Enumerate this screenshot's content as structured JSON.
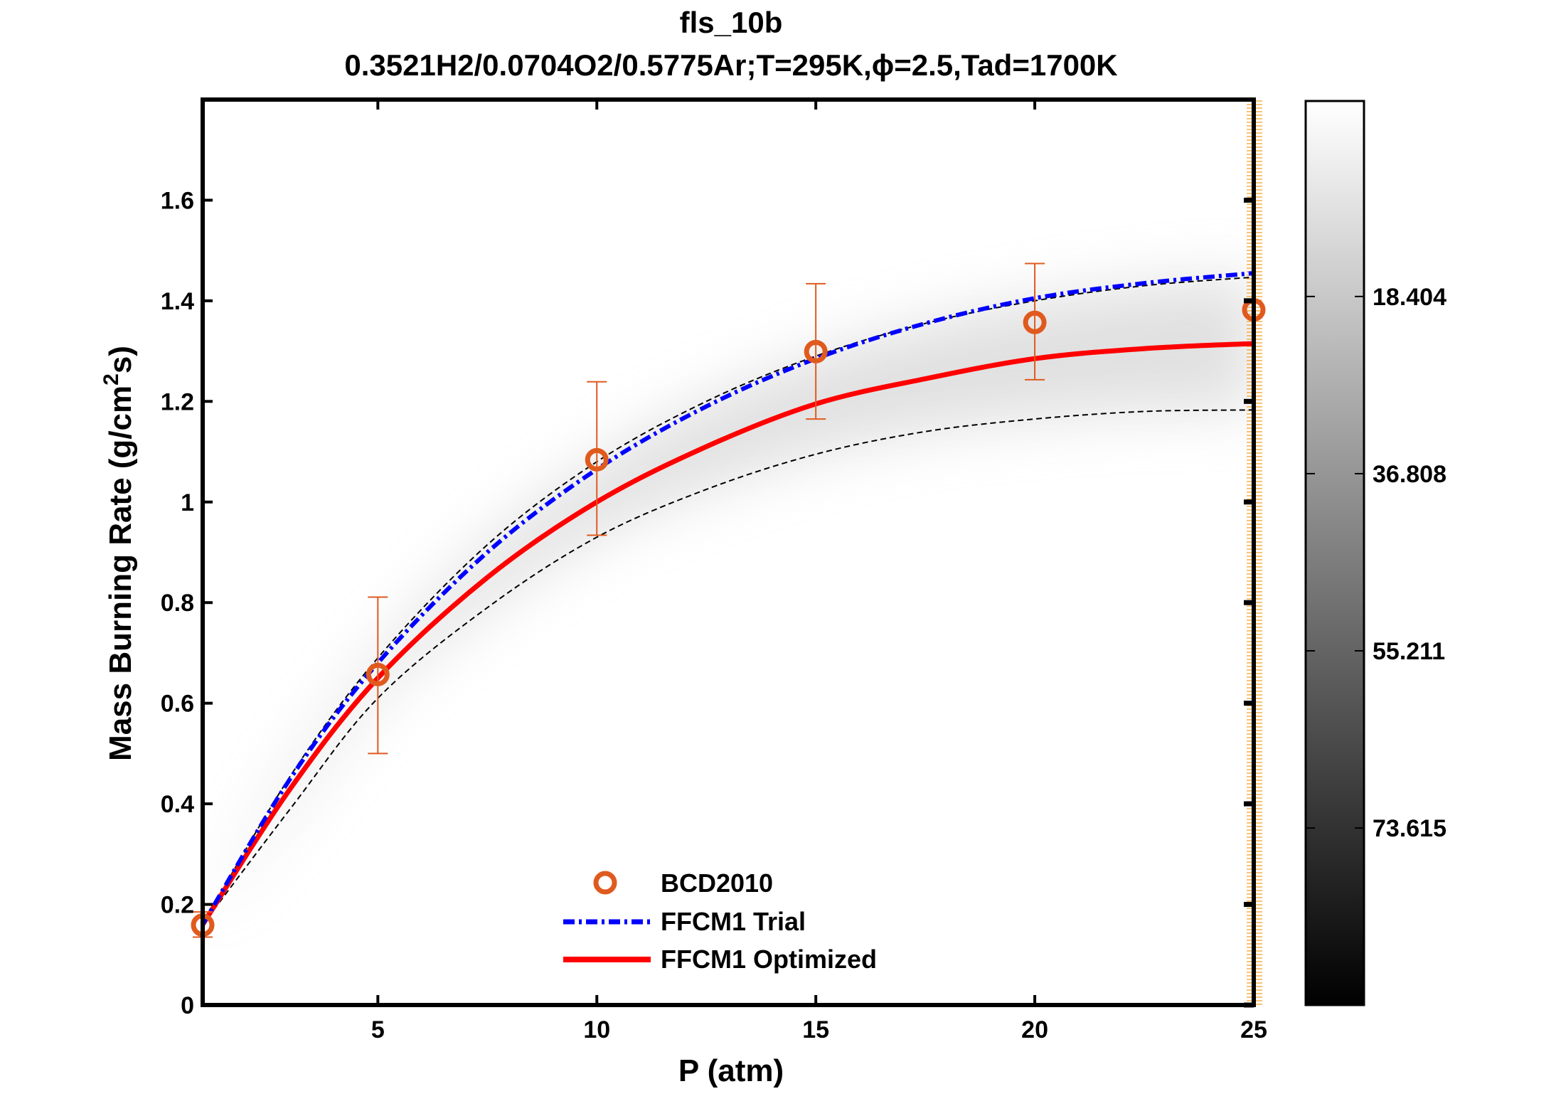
{
  "chart_data": {
    "type": "line",
    "title": "fls_10b",
    "subtitle": "0.3521H2/0.0704O2/0.5775Ar;T=295K,ϕ=2.5,Tad=1700K",
    "xlabel": "P (atm)",
    "ylabel_main": "Mass Burning Rate (g/cm",
    "ylabel_sup": "2",
    "ylabel_end": "s)",
    "xlim": [
      1,
      25
    ],
    "ylim": [
      0,
      1.8
    ],
    "xticks": [
      5,
      10,
      15,
      20,
      25
    ],
    "xtick_labels": [
      "5",
      "10",
      "15",
      "20",
      "25"
    ],
    "yticks": [
      0,
      0.2,
      0.4,
      0.6,
      0.8,
      1,
      1.2,
      1.4,
      1.6
    ],
    "ytick_labels": [
      "0",
      "0.2",
      "0.4",
      "0.6",
      "0.8",
      "1",
      "1.2",
      "1.4",
      "1.6"
    ],
    "grid": false,
    "legend_placement": "bottom-center",
    "x": [
      1,
      3,
      5,
      7.5,
      10,
      12.5,
      15,
      17.5,
      20,
      22.5,
      25
    ],
    "series": [
      {
        "name": "FFCM1 Trial",
        "style": "dash-dot",
        "color": "#0000ff",
        "values": [
          0.16,
          0.45,
          0.68,
          0.9,
          1.065,
          1.19,
          1.285,
          1.355,
          1.405,
          1.435,
          1.455
        ]
      },
      {
        "name": "FFCM1 Optimized",
        "style": "solid",
        "color": "#ff0000",
        "values": [
          0.16,
          0.43,
          0.65,
          0.85,
          1.0,
          1.11,
          1.195,
          1.245,
          1.285,
          1.305,
          1.315
        ]
      }
    ],
    "uncertainty_bounds": {
      "style": "dashed",
      "color": "#000000",
      "upper": [
        0.16,
        0.455,
        0.69,
        0.915,
        1.08,
        1.2,
        1.29,
        1.355,
        1.4,
        1.43,
        1.447
      ],
      "lower": [
        0.16,
        0.39,
        0.61,
        0.79,
        0.93,
        1.025,
        1.095,
        1.14,
        1.165,
        1.18,
        1.183
      ]
    },
    "experiment": {
      "name": "BCD2010",
      "color": "#e05a1e",
      "marker": "circle",
      "x": [
        1,
        5,
        10,
        15,
        20,
        25
      ],
      "y": [
        0.159,
        0.657,
        1.084,
        1.299,
        1.357,
        1.382
      ],
      "err_low": [
        0.135,
        0.5,
        0.934,
        1.165,
        1.243,
        null
      ],
      "err_high": [
        0.185,
        0.811,
        1.239,
        1.434,
        1.474,
        null
      ]
    },
    "colorbar": {
      "colormap": "gray (white at top, black at bottom)",
      "range": [
        -1.9,
        92.0
      ],
      "ticks": [
        18.404,
        36.808,
        55.211,
        73.615
      ],
      "tick_labels": [
        "18.404",
        "36.808",
        "55.211",
        "73.615"
      ]
    }
  }
}
